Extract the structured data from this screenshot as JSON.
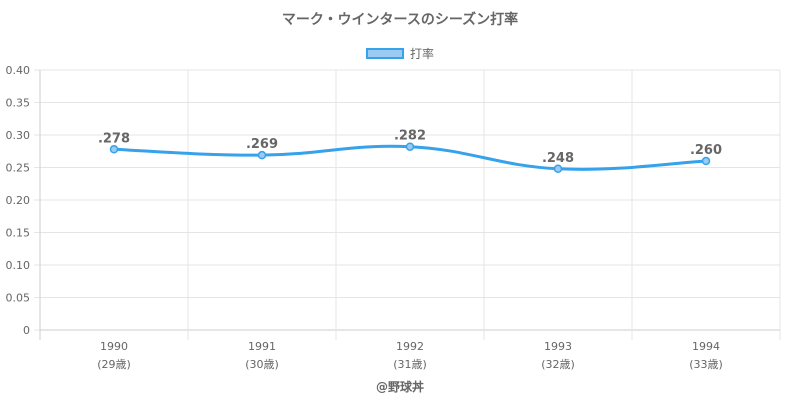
{
  "chart_title": "マーク・ウインタースのシーズン打率",
  "legend_label": "打率",
  "credit": "@野球丼",
  "colors": {
    "line": "#36a2eb",
    "fill": "#9ccaf0",
    "grid": "#e5e5e5",
    "axis": "#cccccc",
    "text": "#666666"
  },
  "chart_data": {
    "type": "line",
    "title": "マーク・ウインタースのシーズン打率",
    "categories": [
      "1990",
      "1991",
      "1992",
      "1993",
      "1994"
    ],
    "sub_categories": [
      "(29歳)",
      "(30歳)",
      "(31歳)",
      "(32歳)",
      "(33歳)"
    ],
    "series": [
      {
        "name": "打率",
        "values": [
          0.278,
          0.269,
          0.282,
          0.248,
          0.26
        ],
        "labels": [
          ".278",
          ".269",
          ".282",
          ".248",
          ".260"
        ]
      }
    ],
    "ylim": [
      0,
      0.4
    ],
    "yticks": [
      0,
      0.05,
      0.1,
      0.15,
      0.2,
      0.25,
      0.3,
      0.35,
      0.4
    ],
    "ytick_labels": [
      "0",
      "0.05",
      "0.10",
      "0.15",
      "0.20",
      "0.25",
      "0.30",
      "0.35",
      "0.40"
    ],
    "grid": true,
    "legend_position": "top"
  }
}
